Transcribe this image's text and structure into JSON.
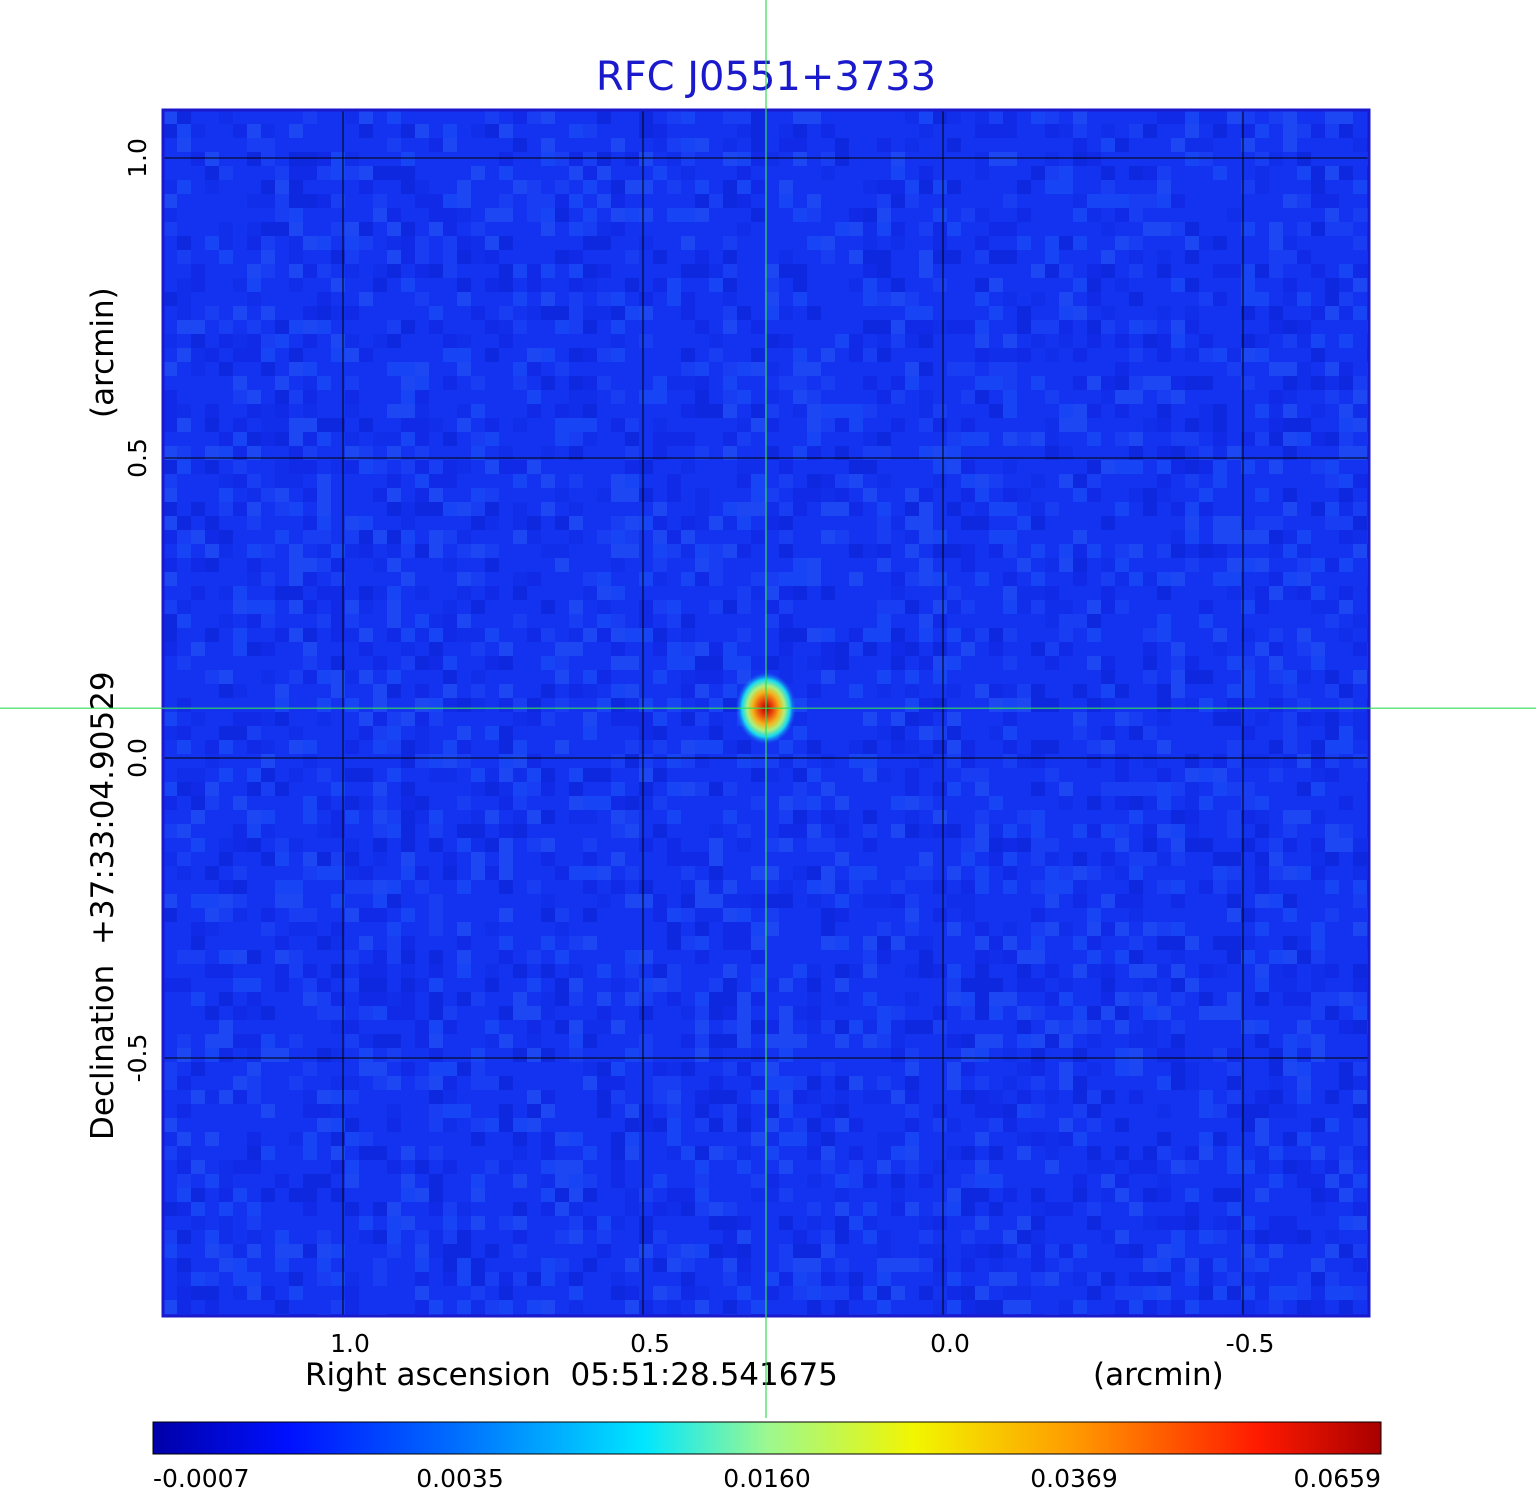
{
  "chart_data": {
    "type": "heatmap",
    "title": "RFC J0551+3733",
    "xlabel": "Right ascension  05:51:28.541675",
    "xunit": "(arcmin)",
    "ylabel": "Declination  +37:33:04.90529",
    "yunit": "(arcmin)",
    "x_axis_direction": "decreasing-to-right",
    "xlim": [
      1.3,
      -0.71
    ],
    "ylim": [
      -0.93,
      1.08
    ],
    "xticks": [
      1.0,
      0.5,
      0.0,
      -0.5
    ],
    "xtick_labels": [
      "1.0",
      "0.5",
      "0.0",
      "-0.5"
    ],
    "yticks": [
      1.0,
      0.5,
      0.0,
      -0.5
    ],
    "ytick_labels": [
      "1.0",
      "0.5",
      "0.0",
      "-0.5"
    ],
    "grid": true,
    "crosshair": {
      "x": 0.295,
      "y": 0.083,
      "color": "#33dd55"
    },
    "source_peak": {
      "x": 0.295,
      "y": 0.083,
      "value": 0.0659
    },
    "colorbar": {
      "ticks": [
        -0.0007,
        0.0035,
        0.016,
        0.0369,
        0.0659
      ],
      "tick_labels": [
        "-0.0007",
        "0.0035",
        "0.0160",
        "0.0369",
        "0.0659"
      ],
      "colormap": "jet"
    },
    "colors": {
      "title": "#1a1acc",
      "background_field": "#1433f0",
      "frame": "#1a1acc",
      "grid": "#000000"
    }
  }
}
